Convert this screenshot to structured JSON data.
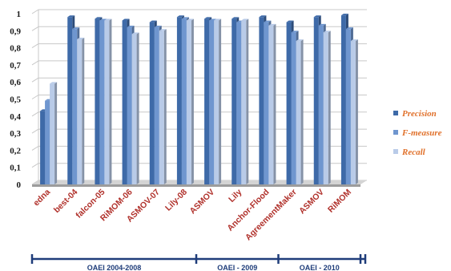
{
  "chart_data": {
    "type": "bar",
    "categories": [
      "edna",
      "best-04",
      "falcon-05",
      "RiMOM-06",
      "ASMOV-07",
      "Lily-08",
      "ASMOV",
      "Lily",
      "Anchor-Flood",
      "AgreementMaker",
      "ASMOV",
      "RiMOM"
    ],
    "series": [
      {
        "name": "Precision",
        "values": [
          0.43,
          0.98,
          0.97,
          0.96,
          0.95,
          0.98,
          0.97,
          0.97,
          0.98,
          0.95,
          0.98,
          0.99
        ]
      },
      {
        "name": "F-measure",
        "values": [
          0.49,
          0.91,
          0.96,
          0.92,
          0.92,
          0.97,
          0.96,
          0.95,
          0.95,
          0.89,
          0.93,
          0.91
        ]
      },
      {
        "name": "Recall",
        "values": [
          0.59,
          0.85,
          0.96,
          0.88,
          0.9,
          0.96,
          0.96,
          0.96,
          0.93,
          0.84,
          0.89,
          0.84
        ]
      }
    ],
    "ylim": [
      0,
      1
    ],
    "yticks": [
      "0",
      "0,1",
      "0,2",
      "0,3",
      "0,4",
      "0,5",
      "0,6",
      "0,7",
      "0,8",
      "0,9",
      "1"
    ],
    "grid": true,
    "legend_position": "right",
    "groups": [
      {
        "label": "OAEI 2004-2008",
        "from": 0,
        "to": 5
      },
      {
        "label": "OAEI - 2009",
        "from": 6,
        "to": 8
      },
      {
        "label": "OAEI - 2010",
        "from": 9,
        "to": 11
      }
    ]
  },
  "colors": {
    "Precision": "#3e6aa8",
    "F-measure": "#6f96cf",
    "Recall": "#b9cbe8",
    "axis_text": "#1a1a1a",
    "category_text": "#b0302a",
    "legend_text": "#e0702a",
    "group_line": "#1f3d7a"
  }
}
